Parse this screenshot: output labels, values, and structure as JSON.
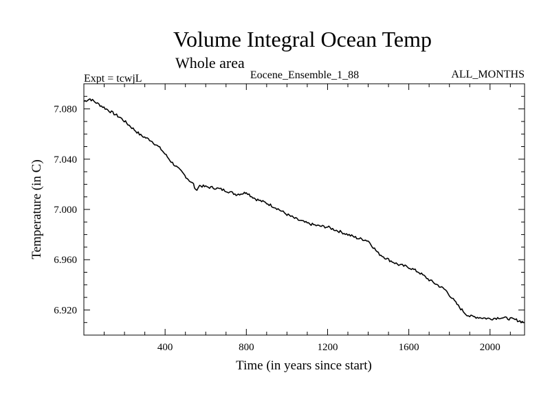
{
  "chart_data": {
    "type": "line",
    "title": "Volume Integral Ocean Temp",
    "subtitle": "Whole area",
    "annotations": {
      "left": "Expt = tcwjL",
      "center": "Eocene_Ensemble_1_88",
      "right": "ALL_MONTHS"
    },
    "xlabel": "Time (in years since start)",
    "ylabel": "Temperature (in C)",
    "xlim": [
      0,
      2170
    ],
    "ylim": [
      6.9,
      7.1
    ],
    "xticks": [
      400,
      800,
      1200,
      1600,
      2000
    ],
    "xtick_labels": [
      "400",
      "800",
      "1200",
      "1600",
      "2000"
    ],
    "yticks": [
      6.92,
      6.96,
      7.0,
      7.04,
      7.08
    ],
    "ytick_labels": [
      "6.920",
      "6.960",
      "7.000",
      "7.040",
      "7.080"
    ],
    "grid": false,
    "line_color": "#000000",
    "series": [
      {
        "x": [
          0,
          30,
          80,
          130,
          180,
          230,
          280,
          330,
          380,
          430,
          480,
          520,
          540,
          550,
          570,
          600,
          650,
          700,
          750,
          790,
          800,
          820,
          850,
          900,
          950,
          1000,
          1050,
          1100,
          1150,
          1200,
          1250,
          1300,
          1350,
          1380,
          1400,
          1450,
          1500,
          1550,
          1600,
          1650,
          1700,
          1750,
          1780,
          1800,
          1850,
          1880,
          1900,
          1950,
          2000,
          2050,
          2100,
          2130,
          2170
        ],
        "y": [
          7.086,
          7.088,
          7.083,
          7.078,
          7.073,
          7.066,
          7.059,
          7.055,
          7.048,
          7.038,
          7.03,
          7.023,
          7.02,
          7.015,
          7.019,
          7.018,
          7.017,
          7.015,
          7.012,
          7.013,
          7.014,
          7.011,
          7.008,
          7.005,
          7.001,
          6.996,
          6.992,
          6.989,
          6.987,
          6.986,
          6.983,
          6.98,
          6.977,
          6.976,
          6.975,
          6.965,
          6.96,
          6.956,
          6.954,
          6.95,
          6.944,
          6.939,
          6.936,
          6.932,
          6.922,
          6.917,
          6.915,
          6.914,
          6.913,
          6.914,
          6.913,
          6.912,
          6.91
        ]
      }
    ]
  }
}
